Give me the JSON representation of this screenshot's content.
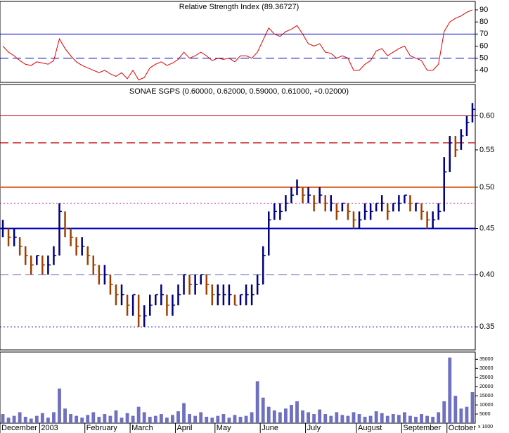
{
  "chart_data": {
    "type": "ohlc",
    "indicator_title": "Relative Strength Index (89.36727)",
    "title": "SONAE SGPS (0.60000, 0.62000, 0.59000, 0.61000, +0.02000)",
    "xlim": [
      0,
      84
    ],
    "xticks": [
      {
        "value": 0,
        "label": "December"
      },
      {
        "value": 7,
        "label": "2003"
      },
      {
        "value": 15,
        "label": "February"
      },
      {
        "value": 23,
        "label": "March"
      },
      {
        "value": 31,
        "label": "April"
      },
      {
        "value": 38,
        "label": "May"
      },
      {
        "value": 46,
        "label": "June"
      },
      {
        "value": 54,
        "label": "July"
      },
      {
        "value": 63,
        "label": "August"
      },
      {
        "value": 71,
        "label": "September"
      },
      {
        "value": 79,
        "label": "October"
      }
    ],
    "up_color": "#00007f",
    "down_color": "#a04000",
    "price": {
      "log": true,
      "ylim": [
        0.33,
        0.65
      ],
      "yticks": [
        {
          "value": 0.35,
          "label": "0.35"
        },
        {
          "value": 0.4,
          "label": "0.40"
        },
        {
          "value": 0.45,
          "label": "0.45"
        },
        {
          "value": 0.5,
          "label": "0.50"
        },
        {
          "value": 0.55,
          "label": "0.55"
        },
        {
          "value": 0.6,
          "label": "0.60"
        }
      ],
      "levels": [
        {
          "value": 0.6,
          "color": "#c00000",
          "style": "solid",
          "width": 1
        },
        {
          "value": 0.56,
          "color": "#c00000",
          "style": "dashed",
          "width": 1.2
        },
        {
          "value": 0.5,
          "color": "#e06020",
          "style": "solid",
          "width": 2
        },
        {
          "value": 0.48,
          "color": "#c000c0",
          "style": "dotted",
          "width": 1
        },
        {
          "value": 0.45,
          "color": "#0000c0",
          "style": "solid",
          "width": 2
        },
        {
          "value": 0.4,
          "color": "#6060c0",
          "style": "dashed",
          "width": 1
        },
        {
          "value": 0.35,
          "color": "#0000c0",
          "style": "dotted",
          "width": 1
        }
      ],
      "close": [
        0.45,
        0.44,
        0.44,
        0.43,
        0.42,
        0.41,
        0.42,
        0.41,
        0.41,
        0.42,
        0.47,
        0.45,
        0.44,
        0.43,
        0.43,
        0.42,
        0.41,
        0.4,
        0.4,
        0.39,
        0.38,
        0.38,
        0.37,
        0.38,
        0.36,
        0.36,
        0.37,
        0.38,
        0.38,
        0.37,
        0.37,
        0.38,
        0.4,
        0.39,
        0.39,
        0.4,
        0.39,
        0.38,
        0.38,
        0.38,
        0.38,
        0.37,
        0.38,
        0.38,
        0.38,
        0.39,
        0.42,
        0.46,
        0.47,
        0.47,
        0.48,
        0.49,
        0.5,
        0.49,
        0.49,
        0.48,
        0.49,
        0.48,
        0.48,
        0.47,
        0.48,
        0.47,
        0.46,
        0.46,
        0.47,
        0.47,
        0.48,
        0.48,
        0.47,
        0.48,
        0.48,
        0.49,
        0.48,
        0.48,
        0.47,
        0.46,
        0.46,
        0.47,
        0.52,
        0.56,
        0.55,
        0.57,
        0.59,
        0.61
      ],
      "high": [
        0.46,
        0.45,
        0.45,
        0.44,
        0.43,
        0.42,
        0.42,
        0.42,
        0.42,
        0.43,
        0.48,
        0.47,
        0.45,
        0.44,
        0.44,
        0.43,
        0.42,
        0.41,
        0.41,
        0.4,
        0.39,
        0.39,
        0.38,
        0.38,
        0.38,
        0.37,
        0.38,
        0.38,
        0.39,
        0.38,
        0.38,
        0.39,
        0.4,
        0.4,
        0.4,
        0.4,
        0.4,
        0.39,
        0.39,
        0.39,
        0.39,
        0.38,
        0.38,
        0.39,
        0.39,
        0.4,
        0.43,
        0.47,
        0.48,
        0.48,
        0.49,
        0.5,
        0.51,
        0.5,
        0.5,
        0.49,
        0.5,
        0.49,
        0.49,
        0.48,
        0.48,
        0.48,
        0.47,
        0.47,
        0.48,
        0.48,
        0.48,
        0.49,
        0.48,
        0.48,
        0.49,
        0.49,
        0.49,
        0.48,
        0.48,
        0.47,
        0.47,
        0.48,
        0.54,
        0.57,
        0.57,
        0.58,
        0.6,
        0.62
      ],
      "low": [
        0.44,
        0.43,
        0.43,
        0.42,
        0.41,
        0.4,
        0.41,
        0.4,
        0.4,
        0.41,
        0.42,
        0.44,
        0.43,
        0.42,
        0.42,
        0.41,
        0.4,
        0.39,
        0.39,
        0.38,
        0.37,
        0.37,
        0.36,
        0.36,
        0.35,
        0.35,
        0.36,
        0.37,
        0.37,
        0.36,
        0.36,
        0.37,
        0.38,
        0.38,
        0.38,
        0.39,
        0.38,
        0.37,
        0.37,
        0.37,
        0.37,
        0.37,
        0.37,
        0.37,
        0.37,
        0.38,
        0.39,
        0.42,
        0.46,
        0.46,
        0.47,
        0.48,
        0.49,
        0.48,
        0.48,
        0.47,
        0.48,
        0.47,
        0.47,
        0.46,
        0.47,
        0.46,
        0.45,
        0.45,
        0.46,
        0.46,
        0.47,
        0.47,
        0.46,
        0.47,
        0.47,
        0.48,
        0.47,
        0.47,
        0.46,
        0.45,
        0.45,
        0.46,
        0.47,
        0.52,
        0.54,
        0.55,
        0.57,
        0.59
      ]
    },
    "rsi": {
      "color": "#e00000",
      "ylim": [
        30,
        97
      ],
      "yticks": [
        40,
        50,
        60,
        70,
        80,
        90
      ],
      "levels": [
        {
          "value": 70,
          "color": "#0000c0",
          "style": "solid",
          "width": 1
        },
        {
          "value": 50,
          "color": "#0000c0",
          "style": "dashed",
          "width": 1
        }
      ],
      "values": [
        60,
        55,
        52,
        48,
        45,
        44,
        47,
        46,
        45,
        48,
        66,
        58,
        52,
        47,
        44,
        42,
        40,
        38,
        40,
        37,
        35,
        38,
        33,
        40,
        32,
        34,
        42,
        45,
        47,
        44,
        46,
        49,
        55,
        50,
        52,
        55,
        52,
        48,
        50,
        49,
        50,
        47,
        52,
        52,
        50,
        55,
        65,
        75,
        70,
        68,
        72,
        74,
        77,
        70,
        62,
        60,
        62,
        55,
        54,
        50,
        52,
        50,
        40,
        40,
        45,
        48,
        56,
        58,
        52,
        55,
        58,
        60,
        52,
        50,
        48,
        40,
        40,
        45,
        72,
        80,
        83,
        85,
        88,
        90
      ]
    },
    "volume": {
      "color": "#7070c0",
      "unit": "x 1000",
      "ylim": [
        0,
        39000
      ],
      "yticks": [
        5000,
        10000,
        15000,
        20000,
        25000,
        30000,
        35000
      ],
      "values": [
        5000,
        3000,
        4000,
        6000,
        3500,
        2500,
        4000,
        5500,
        3000,
        6000,
        19000,
        8000,
        5000,
        4000,
        3000,
        4500,
        6000,
        3500,
        5000,
        4000,
        7000,
        3000,
        5500,
        4000,
        9000,
        6000,
        3500,
        4000,
        5000,
        3000,
        4500,
        6500,
        11000,
        5000,
        4000,
        6000,
        3500,
        3000,
        4000,
        5000,
        3000,
        4500,
        3500,
        4000,
        6000,
        23000,
        14000,
        9000,
        7000,
        6000,
        8000,
        10000,
        12000,
        7000,
        6000,
        5000,
        7500,
        5000,
        4000,
        6000,
        4500,
        4000,
        6000,
        5000,
        3500,
        4000,
        6500,
        5500,
        4000,
        5000,
        4500,
        6000,
        4000,
        3500,
        5000,
        4000,
        3500,
        6000,
        12000,
        36000,
        15000,
        8000,
        9000,
        17000
      ]
    }
  }
}
